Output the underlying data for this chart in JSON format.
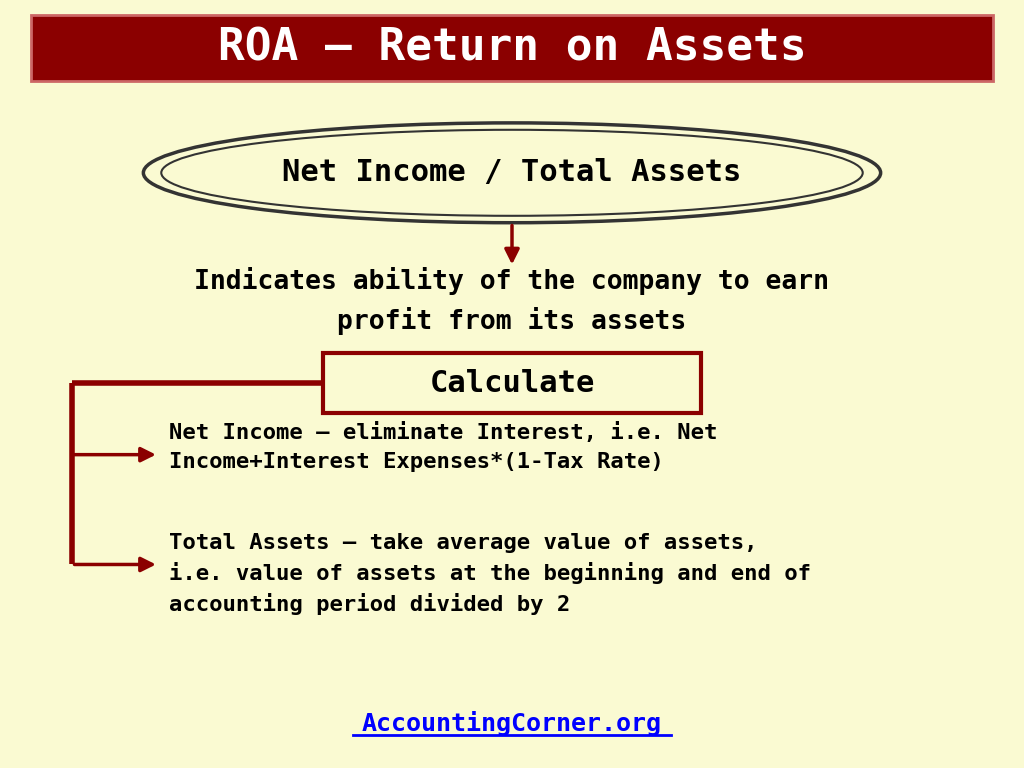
{
  "title": "ROA – Return on Assets",
  "title_bg_color": "#8B0000",
  "title_text_color": "#FFFFFF",
  "bg_color": "#FAFAD2",
  "ellipse_text": "Net Income / Total Assets",
  "ellipse_fill": "#FAFAD2",
  "ellipse_border": "#333333",
  "indicates_text_line1": "Indicates ability of the company to earn",
  "indicates_text_line2": "profit from its assets",
  "indicates_color": "#000000",
  "calc_box_text": "Calculate",
  "calc_box_fill": "#FAFAD2",
  "calc_box_border": "#8B0000",
  "arrow_color": "#8B0000",
  "bullet1_line1": "Net Income – eliminate Interest, i.e. Net",
  "bullet1_line2": "Income+Interest Expenses*(1-Tax Rate)",
  "bullet2_line1": "Total Assets – take average value of assets,",
  "bullet2_line2": "i.e. value of assets at the beginning and end of",
  "bullet2_line3": "accounting period divided by 2",
  "text_color": "#000000",
  "website_text": "AccountingCorner.org",
  "website_color": "#0000FF",
  "font_family": "monospace"
}
